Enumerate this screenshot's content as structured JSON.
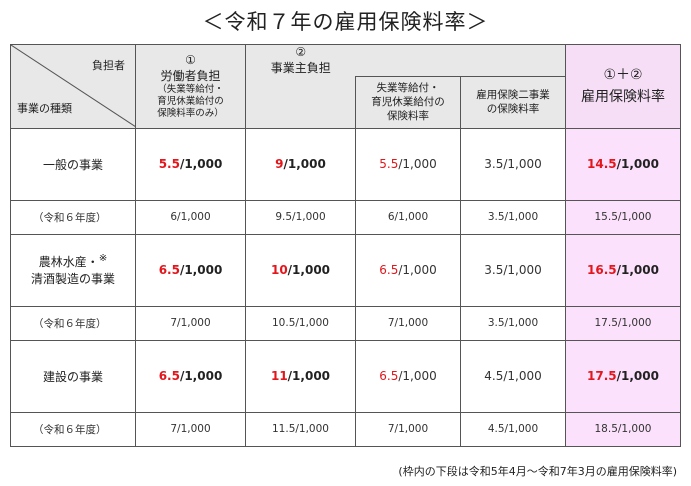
{
  "title": "＜令和７年の雇用保険料率＞",
  "header": {
    "corner_top": "負担者",
    "corner_bottom": "事業の種類",
    "worker_num": "①",
    "worker_label": "労働者負担",
    "worker_note1": "（失業等給付・",
    "worker_note2": "育児休業給付の",
    "worker_note3": "保険料率のみ）",
    "employer_num": "②",
    "employer_label": "事業主負担",
    "unemp_line1": "失業等給付・",
    "unemp_line2": "育児休業給付の",
    "unemp_line3": "保険料率",
    "two_line1": "雇用保険二事業",
    "two_line2": "の保険料率",
    "total_top": "①＋②",
    "total_label": "雇用保険料率"
  },
  "rows": [
    {
      "label1": "一般の事業",
      "label2": "",
      "mark": "",
      "worker_red": "5.5",
      "worker_rest": "/1,000",
      "employer_red": "9",
      "employer_rest": "/1,000",
      "unemp_red": "5.5",
      "unemp_rest": "/1,000",
      "two": "3.5/1,000",
      "total_red": "14.5",
      "total_rest": "/1,000",
      "prev_label": "（令和６年度）",
      "prev_worker": "6/1,000",
      "prev_employer": "9.5/1,000",
      "prev_unemp": "6/1,000",
      "prev_two": "3.5/1,000",
      "prev_total": "15.5/1,000"
    },
    {
      "label1": "農林水産・",
      "label2": "清酒製造の事業",
      "mark": "※",
      "worker_red": "6.5",
      "worker_rest": "/1,000",
      "employer_red": "10",
      "employer_rest": "/1,000",
      "unemp_red": "6.5",
      "unemp_rest": "/1,000",
      "two": "3.5/1,000",
      "total_red": "16.5",
      "total_rest": "/1,000",
      "prev_label": "（令和６年度）",
      "prev_worker": "7/1,000",
      "prev_employer": "10.5/1,000",
      "prev_unemp": "7/1,000",
      "prev_two": "3.5/1,000",
      "prev_total": "17.5/1,000"
    },
    {
      "label1": "建設の事業",
      "label2": "",
      "mark": "",
      "worker_red": "6.5",
      "worker_rest": "/1,000",
      "employer_red": "11",
      "employer_rest": "/1,000",
      "unemp_red": "6.5",
      "unemp_rest": "/1,000",
      "two": "4.5/1,000",
      "total_red": "17.5",
      "total_rest": "/1,000",
      "prev_label": "（令和６年度）",
      "prev_worker": "7/1,000",
      "prev_employer": "11.5/1,000",
      "prev_unemp": "7/1,000",
      "prev_two": "4.5/1,000",
      "prev_total": "18.5/1,000"
    }
  ],
  "note": "(枠内の下段は令和5年4月～令和7年3月の雇用保険料率)",
  "colors": {
    "red": "#e3161c",
    "header_gray": "#e8e8e8",
    "total_pink": "#fbe1fb"
  }
}
